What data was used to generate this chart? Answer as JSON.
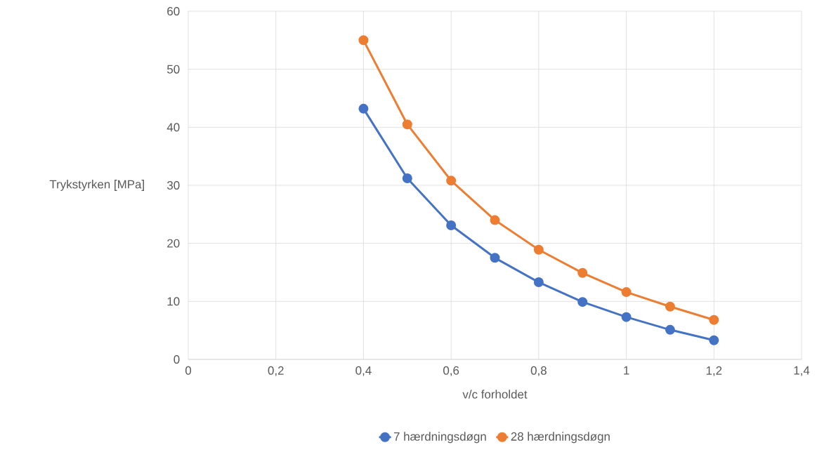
{
  "chart_data": {
    "type": "line",
    "xlabel": "v/c forholdet",
    "ylabel": "Trykstyrken [MPa]",
    "x": [
      0.4,
      0.5,
      0.6,
      0.7,
      0.8,
      0.9,
      1.0,
      1.1,
      1.2
    ],
    "series": [
      {
        "name": "7 hærdningsdøgn",
        "color": "#4472c4",
        "values": [
          43.2,
          31.2,
          23.1,
          17.5,
          13.3,
          9.9,
          7.3,
          5.1,
          3.3
        ]
      },
      {
        "name": "28 hærdningsdøgn",
        "color": "#ed7d31",
        "values": [
          55.0,
          40.5,
          30.8,
          24.0,
          18.9,
          14.9,
          11.6,
          9.1,
          6.8
        ]
      }
    ],
    "xlim": [
      0,
      1.4
    ],
    "ylim": [
      0,
      60
    ],
    "xticks": [
      0,
      {
        "value": 0.2,
        "label": "0,2"
      },
      {
        "value": 0.4,
        "label": "0,4"
      },
      {
        "value": 0.6,
        "label": "0,6"
      },
      {
        "value": 0.8,
        "label": "0,8"
      },
      1,
      {
        "value": 1.2,
        "label": "1,2"
      },
      {
        "value": 1.4,
        "label": "1,4"
      }
    ],
    "yticks": [
      0,
      10,
      20,
      30,
      40,
      50,
      60
    ],
    "grid": true,
    "legend": "bottom",
    "marker": "circle"
  }
}
